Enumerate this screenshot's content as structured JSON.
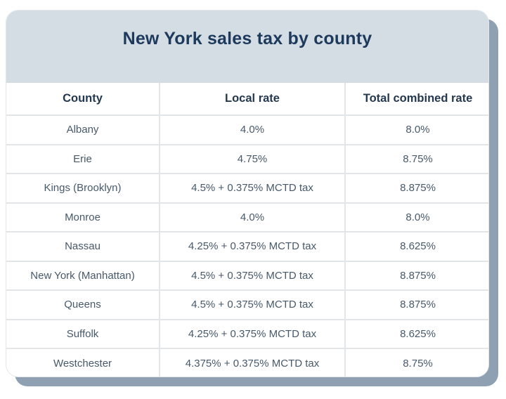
{
  "title": "New York sales tax by county",
  "chart_data": {
    "type": "table",
    "title": "New York sales tax by county",
    "columns": [
      "County",
      "Local rate",
      "Total combined rate"
    ],
    "rows": [
      [
        "Albany",
        "4.0%",
        "8.0%"
      ],
      [
        "Erie",
        "4.75%",
        "8.75%"
      ],
      [
        "Kings (Brooklyn)",
        "4.5% + 0.375% MCTD tax",
        "8.875%"
      ],
      [
        "Monroe",
        "4.0%",
        "8.0%"
      ],
      [
        "Nassau",
        "4.25% + 0.375% MCTD tax",
        "8.625%"
      ],
      [
        "New York (Manhattan)",
        "4.5% + 0.375% MCTD tax",
        "8.875%"
      ],
      [
        "Queens",
        "4.5% + 0.375% MCTD tax",
        "8.875%"
      ],
      [
        "Suffolk",
        "4.25% + 0.375% MCTD tax",
        "8.625%"
      ],
      [
        "Westchester",
        "4.375% + 0.375% MCTD tax",
        "8.75%"
      ]
    ]
  },
  "colors": {
    "header_band": "#d4dde4",
    "title_text": "#1d3a5c",
    "header_cell_text": "#24384e",
    "body_text": "#47596a",
    "grid_line": "#e2e6e9",
    "shadow": "#8fa0b3",
    "card_bg": "#ffffff",
    "page_bg": "#ffffff"
  }
}
